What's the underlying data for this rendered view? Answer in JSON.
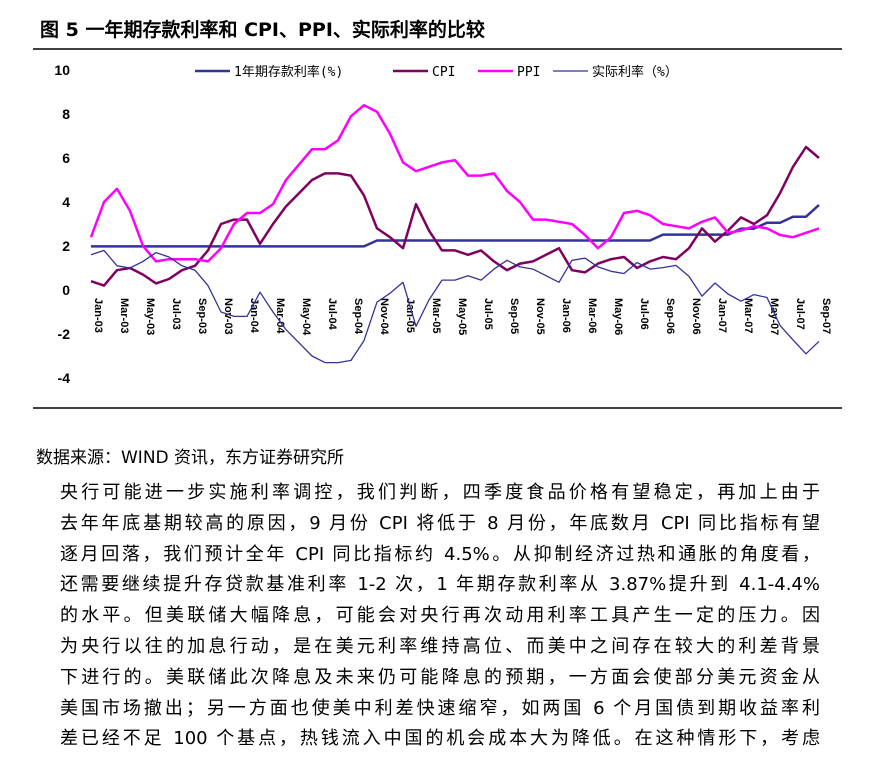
{
  "chart_data": {
    "type": "line",
    "title": "图 5  一年期存款利率和 CPI、PPI、实际利率的比较",
    "categories": [
      "Jan-03",
      null,
      "Mar-03",
      null,
      "May-03",
      null,
      "Jul-03",
      null,
      "Sep-03",
      null,
      "Nov-03",
      null,
      "Jan-04",
      null,
      "Mar-04",
      null,
      "May-04",
      null,
      "Jul-04",
      null,
      "Sep-04",
      null,
      "Nov-04",
      null,
      "Jan-05",
      null,
      "Mar-05",
      null,
      "May-05",
      null,
      "Jul-05",
      null,
      "Sep-05",
      null,
      "Nov-05",
      null,
      "Jan-06",
      null,
      "Mar-06",
      null,
      "May-06",
      null,
      "Jul-06",
      null,
      "Sep-06",
      null,
      "Nov-06",
      null,
      "Jan-07",
      null,
      "Mar-07",
      null,
      "May-07",
      null,
      "Jul-07",
      null,
      "Sep-07"
    ],
    "ylim": [
      -4,
      10
    ],
    "yticks": [
      -4,
      -2,
      0,
      2,
      4,
      6,
      8,
      10
    ],
    "legend": "top",
    "series": [
      {
        "name": "1年期存款利率(%)",
        "color": "#333399",
        "values": [
          1.98,
          1.98,
          1.98,
          1.98,
          1.98,
          1.98,
          1.98,
          1.98,
          1.98,
          1.98,
          1.98,
          1.98,
          1.98,
          1.98,
          1.98,
          1.98,
          1.98,
          1.98,
          1.98,
          1.98,
          1.98,
          1.98,
          2.25,
          2.25,
          2.25,
          2.25,
          2.25,
          2.25,
          2.25,
          2.25,
          2.25,
          2.25,
          2.25,
          2.25,
          2.25,
          2.25,
          2.25,
          2.25,
          2.25,
          2.25,
          2.25,
          2.25,
          2.25,
          2.25,
          2.52,
          2.52,
          2.52,
          2.52,
          2.52,
          2.52,
          2.79,
          2.79,
          3.06,
          3.06,
          3.33,
          3.33,
          3.87
        ]
      },
      {
        "name": "CPI",
        "color": "#800060",
        "values": [
          0.4,
          0.2,
          0.9,
          1.0,
          0.7,
          0.3,
          0.5,
          0.9,
          1.1,
          1.8,
          3.0,
          3.2,
          3.2,
          2.1,
          3.0,
          3.8,
          4.4,
          5.0,
          5.3,
          5.3,
          5.2,
          4.3,
          2.8,
          2.4,
          1.9,
          3.9,
          2.7,
          1.8,
          1.8,
          1.6,
          1.8,
          1.3,
          0.9,
          1.2,
          1.3,
          1.6,
          1.9,
          0.9,
          0.8,
          1.2,
          1.4,
          1.5,
          1.0,
          1.3,
          1.5,
          1.4,
          1.9,
          2.8,
          2.2,
          2.7,
          3.3,
          3.0,
          3.4,
          4.4,
          5.6,
          6.5,
          6.0
        ]
      },
      {
        "name": "PPI",
        "color": "#ff00ff",
        "values": [
          2.4,
          4.0,
          4.6,
          3.6,
          2.0,
          1.3,
          1.4,
          1.4,
          1.4,
          1.3,
          1.9,
          3.0,
          3.5,
          3.5,
          3.9,
          5.0,
          5.7,
          6.4,
          6.4,
          6.8,
          7.9,
          8.4,
          8.1,
          7.1,
          5.8,
          5.4,
          5.6,
          5.8,
          5.9,
          5.2,
          5.2,
          5.3,
          4.5,
          4.0,
          3.2,
          3.2,
          3.1,
          3.0,
          2.5,
          1.9,
          2.4,
          3.5,
          3.6,
          3.4,
          3.0,
          2.9,
          2.8,
          3.1,
          3.3,
          2.6,
          2.7,
          2.9,
          2.8,
          2.5,
          2.4,
          2.6,
          2.8
        ]
      },
      {
        "name": "实际利率（%）",
        "color": "#333399",
        "values": [
          1.6,
          1.8,
          1.1,
          1.0,
          1.3,
          1.7,
          1.5,
          1.1,
          0.9,
          0.2,
          -1.0,
          -1.2,
          -1.2,
          -0.1,
          -1.0,
          -1.8,
          -2.4,
          -3.0,
          -3.3,
          -3.3,
          -3.2,
          -2.3,
          -0.55,
          -0.15,
          0.35,
          -1.65,
          -0.45,
          0.45,
          0.45,
          0.65,
          0.45,
          0.95,
          1.35,
          1.05,
          0.95,
          0.65,
          0.35,
          1.35,
          1.45,
          1.05,
          0.85,
          0.75,
          1.25,
          0.95,
          1.02,
          1.12,
          0.62,
          -0.28,
          0.32,
          -0.18,
          -0.51,
          -0.21,
          -0.34,
          -1.61,
          -2.27,
          -2.9,
          -2.33
        ]
      }
    ]
  },
  "document": {
    "source": "数据来源：WIND 资讯，东方证券研究所",
    "lines": [
      "央行可能进一步实施利率调控，我们判断，四季度食品价格有望稳定，再加上由于",
      "去年年底基期较高的原因，9 月份 CPI 将低于 8 月份，年底数月 CPI 同比指标有望",
      "逐月回落，我们预计全年 CPI 同比指标约 4.5%。从抑制经济过热和通胀的角度看，",
      "还需要继续提升存贷款基准利率 1-2 次，1 年期存款利率从 3.87%提升到 4.1-4.4%",
      "的水平。但美联储大幅降息，可能会对央行再次动用利率工具产生一定的压力。因",
      "为央行以往的加息行动，是在美元利率维持高位、而美中之间存在较大的利差背景",
      "下进行的。美联储此次降息及未来仍可能降息的预期，一方面会使部分美元资金从",
      "美国市场撤出；另一方面也使美中利差快速缩窄，如两国 6 个月国债到期收益率利",
      "差已经不足 100 个基点，热钱流入中国的机会成本大为降低。在这种情形下，考虑"
    ]
  }
}
